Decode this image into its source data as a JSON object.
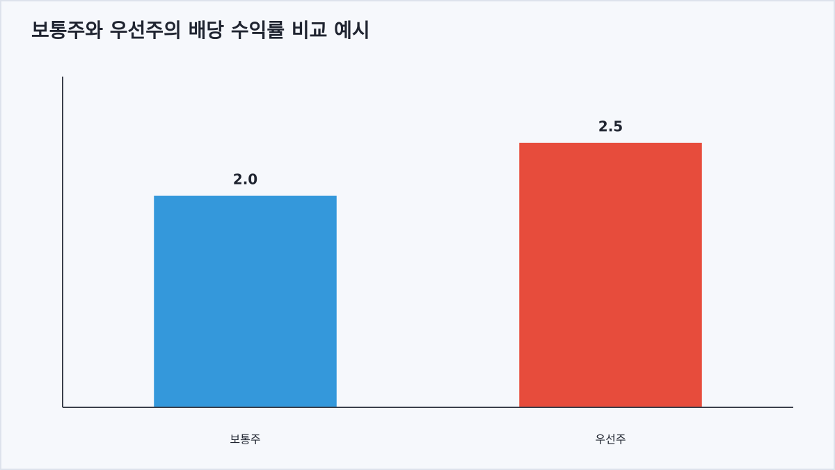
{
  "chart_data": {
    "type": "bar",
    "title": "보통주와 우선주의 배당 수익률 비교 예시",
    "categories": [
      "보통주",
      "우선주"
    ],
    "values": [
      2.0,
      2.5
    ],
    "value_labels": [
      "2.0",
      "2.5"
    ],
    "colors": [
      "#3498db",
      "#e74c3c"
    ],
    "ylim": [
      0,
      3.125
    ],
    "grid": false
  }
}
